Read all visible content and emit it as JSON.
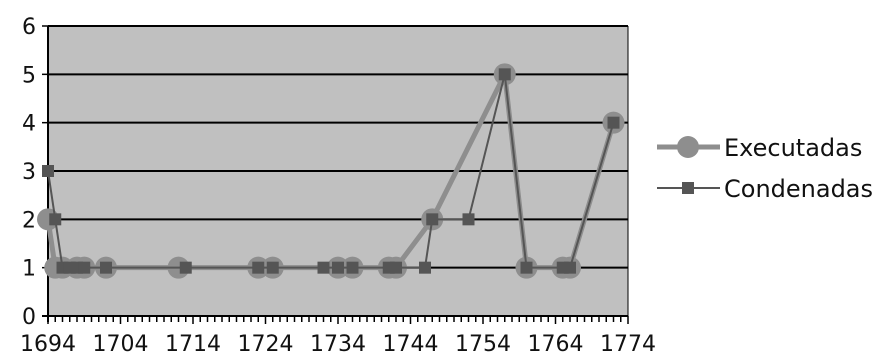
{
  "chart_data": {
    "type": "line",
    "title": "",
    "xlabel": "",
    "ylabel": "",
    "xlim": [
      1694,
      1774
    ],
    "ylim": [
      0,
      6
    ],
    "grid": "horizontal",
    "legend_position": "right",
    "x_ticks": [
      "1694",
      "1704",
      "1714",
      "1724",
      "1734",
      "1744",
      "1754",
      "1764",
      "1774"
    ],
    "y_ticks": [
      "0",
      "1",
      "2",
      "3",
      "4",
      "5",
      "6"
    ],
    "colors": {
      "plot_background": "#c0c0c0",
      "executadas": "#8e8e8e",
      "condenadas": "#555555",
      "gridline": "#000000"
    },
    "series": [
      {
        "name": "Executadas",
        "marker": "circle",
        "points": [
          {
            "x": 1694,
            "y": 2
          },
          {
            "x": 1695,
            "y": 1
          },
          {
            "x": 1696,
            "y": 1
          },
          {
            "x": 1698,
            "y": 1
          },
          {
            "x": 1699,
            "y": 1
          },
          {
            "x": 1702,
            "y": 1
          },
          {
            "x": 1712,
            "y": 1
          },
          {
            "x": 1723,
            "y": 1
          },
          {
            "x": 1725,
            "y": 1
          },
          {
            "x": 1734,
            "y": 1
          },
          {
            "x": 1736,
            "y": 1
          },
          {
            "x": 1741,
            "y": 1
          },
          {
            "x": 1742,
            "y": 1
          },
          {
            "x": 1747,
            "y": 2
          },
          {
            "x": 1757,
            "y": 5
          },
          {
            "x": 1760,
            "y": 1
          },
          {
            "x": 1765,
            "y": 1
          },
          {
            "x": 1766,
            "y": 1
          },
          {
            "x": 1772,
            "y": 4
          }
        ]
      },
      {
        "name": "Condenadas",
        "marker": "square",
        "points": [
          {
            "x": 1694,
            "y": 3
          },
          {
            "x": 1695,
            "y": 2
          },
          {
            "x": 1696,
            "y": 1
          },
          {
            "x": 1697,
            "y": 1
          },
          {
            "x": 1698,
            "y": 1
          },
          {
            "x": 1699,
            "y": 1
          },
          {
            "x": 1702,
            "y": 1
          },
          {
            "x": 1713,
            "y": 1
          },
          {
            "x": 1723,
            "y": 1
          },
          {
            "x": 1725,
            "y": 1
          },
          {
            "x": 1732,
            "y": 1
          },
          {
            "x": 1734,
            "y": 1
          },
          {
            "x": 1736,
            "y": 1
          },
          {
            "x": 1741,
            "y": 1
          },
          {
            "x": 1742,
            "y": 1
          },
          {
            "x": 1746,
            "y": 1
          },
          {
            "x": 1747,
            "y": 2
          },
          {
            "x": 1752,
            "y": 2
          },
          {
            "x": 1757,
            "y": 5
          },
          {
            "x": 1760,
            "y": 1
          },
          {
            "x": 1765,
            "y": 1
          },
          {
            "x": 1766,
            "y": 1
          },
          {
            "x": 1772,
            "y": 4
          }
        ]
      }
    ]
  }
}
